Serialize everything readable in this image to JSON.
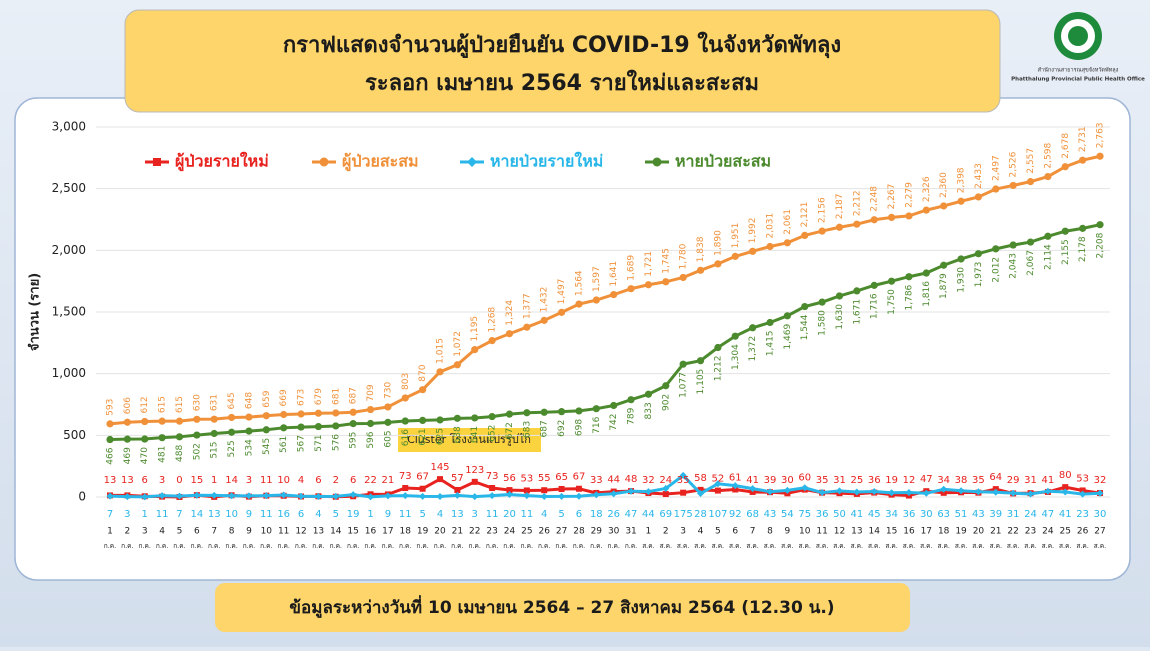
{
  "chart_data": {
    "type": "line",
    "title": "กราฟแสดงจำนวนผู้ป่วยยืนยัน COVID-19 ในจังหวัดพัทลุง",
    "subtitle": "ระลอก เมษายน 2564 รายใหม่และสะสม",
    "footer": "ข้อมูลระหว่างวันที่ 10 เมษายน 2564 – 27 สิงหาคม 2564 (12.30 น.)",
    "logo_text": "สำนักงานสาธารณสุขจังหวัดพัทลุง",
    "logo_subtext": "Phatthalung Provincial Public Health Office",
    "annotation": "Cluster โรงงานแปรรูปไก่",
    "ylabel": "จำนวน (ราย)",
    "categories": [
      "1",
      "2",
      "3",
      "4",
      "5",
      "6",
      "7",
      "8",
      "9",
      "10",
      "11",
      "12",
      "13",
      "14",
      "15",
      "16",
      "17",
      "18",
      "19",
      "20",
      "21",
      "22",
      "23",
      "24",
      "25",
      "26",
      "27",
      "28",
      "29",
      "30",
      "31",
      "1",
      "2",
      "3",
      "4",
      "5",
      "6",
      "7",
      "8",
      "9",
      "10",
      "11",
      "12",
      "13",
      "14",
      "15",
      "16",
      "17",
      "18",
      "19",
      "20",
      "21",
      "22",
      "23",
      "24",
      "25",
      "26",
      "27"
    ],
    "months": [
      "ก.ค.",
      "ก.ค.",
      "ก.ค.",
      "ก.ค.",
      "ก.ค.",
      "ก.ค.",
      "ก.ค.",
      "ก.ค.",
      "ก.ค.",
      "ก.ค.",
      "ก.ค.",
      "ก.ค.",
      "ก.ค.",
      "ก.ค.",
      "ก.ค.",
      "ก.ค.",
      "ก.ค.",
      "ก.ค.",
      "ก.ค.",
      "ก.ค.",
      "ก.ค.",
      "ก.ค.",
      "ก.ค.",
      "ก.ค.",
      "ก.ค.",
      "ก.ค.",
      "ก.ค.",
      "ก.ค.",
      "ก.ค.",
      "ก.ค.",
      "ก.ค.",
      "ส.ค.",
      "ส.ค.",
      "ส.ค.",
      "ส.ค.",
      "ส.ค.",
      "ส.ค.",
      "ส.ค.",
      "ส.ค.",
      "ส.ค.",
      "ส.ค.",
      "ส.ค.",
      "ส.ค.",
      "ส.ค.",
      "ส.ค.",
      "ส.ค.",
      "ส.ค.",
      "ส.ค.",
      "ส.ค.",
      "ส.ค.",
      "ส.ค.",
      "ส.ค.",
      "ส.ค.",
      "ส.ค.",
      "ส.ค.",
      "ส.ค.",
      "ส.ค.",
      "ส.ค."
    ],
    "ylim": [
      0,
      3000
    ],
    "yticks": [
      0,
      500,
      {
        "value": 1000,
        "label": "1,000"
      },
      {
        "value": 1500,
        "label": "1,500"
      },
      {
        "value": 2000,
        "label": "2,000"
      },
      {
        "value": 2500,
        "label": "2,500"
      },
      {
        "value": 3000,
        "label": "3,000"
      }
    ],
    "grid": true,
    "series": [
      {
        "name": "ผู้ป่วยรายใหม่",
        "color": "#e8221e",
        "marker": "square",
        "values": [
          13,
          13,
          6,
          3,
          0,
          15,
          1,
          14,
          3,
          11,
          10,
          4,
          6,
          2,
          6,
          22,
          21,
          73,
          67,
          145,
          57,
          123,
          73,
          56,
          53,
          55,
          65,
          67,
          33,
          44,
          48,
          32,
          24,
          35,
          58,
          52,
          61,
          41,
          39,
          30,
          60,
          35,
          31,
          25,
          36,
          19,
          12,
          47,
          34,
          38,
          35,
          64,
          29,
          31,
          41,
          80,
          53,
          32
        ]
      },
      {
        "name": "ผู้ป่วยสะสม",
        "color": "#f0913a",
        "marker": "circle",
        "values": [
          593,
          606,
          612,
          615,
          615,
          630,
          631,
          645,
          648,
          659,
          669,
          673,
          679,
          681,
          687,
          709,
          730,
          803,
          870,
          1015,
          1072,
          1195,
          1268,
          1324,
          1377,
          1432,
          1497,
          1564,
          1597,
          1641,
          1689,
          1721,
          1745,
          1780,
          1838,
          1890,
          1951,
          1992,
          2031,
          2061,
          2121,
          2156,
          2187,
          2212,
          2248,
          2267,
          2279,
          2326,
          2360,
          2398,
          2433,
          2497,
          2526,
          2557,
          2598,
          2678,
          2731,
          2763
        ],
        "value_labels": [
          "593",
          "606",
          "612",
          "615",
          "615",
          "630",
          "631",
          "645",
          "648",
          "659",
          "669",
          "673",
          "679",
          "681",
          "687",
          "709",
          "730",
          "803",
          "870",
          "1,015",
          "1,072",
          "1,195",
          "1,268",
          "1,324",
          "1,377",
          "1,432",
          "1,497",
          "1,564",
          "1,597",
          "1,641",
          "1,689",
          "1,721",
          "1,745",
          "1,780",
          "1,838",
          "1,890",
          "1,951",
          "1,992",
          "2,031",
          "2,061",
          "2,121",
          "2,156",
          "2,187",
          "2,212",
          "2,248",
          "2,267",
          "2,279",
          "2,326",
          "2,360",
          "2,398",
          "2,433",
          "2,497",
          "2,526",
          "2,557",
          "2,598",
          "2,678",
          "2,731",
          "2,763"
        ]
      },
      {
        "name": "หายป่วยรายใหม่",
        "color": "#29b6e8",
        "marker": "diamond",
        "values": [
          7,
          3,
          1,
          11,
          7,
          14,
          13,
          10,
          9,
          11,
          16,
          6,
          4,
          5,
          19,
          1,
          9,
          11,
          5,
          4,
          13,
          3,
          11,
          20,
          11,
          4,
          5,
          6,
          18,
          26,
          47,
          44,
          69,
          175,
          28,
          107,
          92,
          68,
          43,
          54,
          75,
          36,
          50,
          41,
          45,
          34,
          36,
          30,
          63,
          51,
          43,
          39,
          31,
          24,
          47,
          41,
          23,
          30
        ]
      },
      {
        "name": "หายป่วยสะสม",
        "color": "#4c8a2e",
        "marker": "circle",
        "values": [
          466,
          469,
          470,
          481,
          488,
          502,
          515,
          525,
          534,
          545,
          561,
          567,
          571,
          576,
          595,
          596,
          605,
          616,
          621,
          625,
          638,
          641,
          652,
          672,
          683,
          687,
          692,
          698,
          716,
          742,
          789,
          833,
          902,
          1077,
          1105,
          1212,
          1304,
          1372,
          1415,
          1469,
          1544,
          1580,
          1630,
          1671,
          1716,
          1750,
          1786,
          1816,
          1879,
          1930,
          1973,
          2012,
          2043,
          2067,
          2114,
          2155,
          2178,
          2208
        ],
        "value_labels": [
          "466",
          "469",
          "470",
          "481",
          "488",
          "502",
          "515",
          "525",
          "534",
          "545",
          "561",
          "567",
          "571",
          "576",
          "595",
          "596",
          "605",
          "616",
          "621",
          "625",
          "638",
          "641",
          "652",
          "672",
          "683",
          "687",
          "692",
          "698",
          "716",
          "742",
          "789",
          "833",
          "902",
          "1,077",
          "1,105",
          "1,212",
          "1,304",
          "1,372",
          "1,415",
          "1,469",
          "1,544",
          "1,580",
          "1,630",
          "1,671",
          "1,716",
          "1,750",
          "1,786",
          "1,816",
          "1,879",
          "1,930",
          "1,973",
          "2,012",
          "2,043",
          "2,067",
          "2,114",
          "2,155",
          "2,178",
          "2,208"
        ]
      }
    ]
  }
}
